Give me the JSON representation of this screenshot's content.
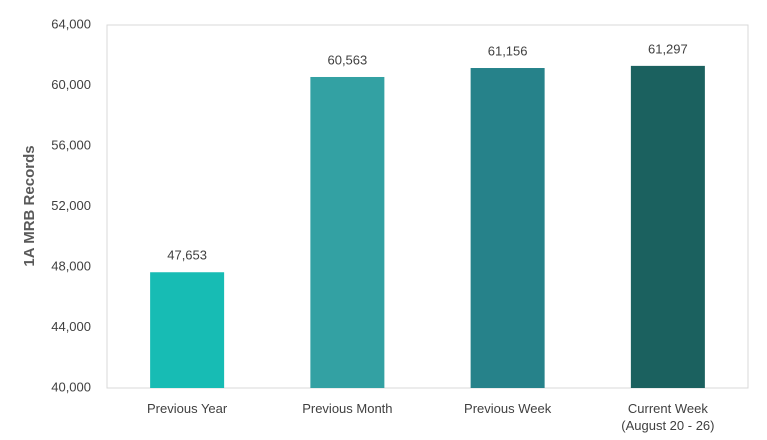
{
  "chart_data": {
    "type": "bar",
    "y_label": "1A MRB Records",
    "categories": [
      "Previous Year",
      "Previous Month",
      "Previous Week",
      "Current Week\n(August 20 - 26)"
    ],
    "values": [
      47653,
      60563,
      61156,
      61297
    ],
    "value_labels": [
      "47,653",
      "60,563",
      "61,156",
      "61,297"
    ],
    "colors": [
      "#17bcb4",
      "#33a1a3",
      "#26828a",
      "#1b615f"
    ],
    "ylim": [
      40000,
      64000
    ],
    "yticks": [
      {
        "value": 40000,
        "label": "40,000"
      },
      {
        "value": 44000,
        "label": "44,000"
      },
      {
        "value": 48000,
        "label": "48,000"
      },
      {
        "value": 52000,
        "label": "52,000"
      },
      {
        "value": 56000,
        "label": "56,000"
      },
      {
        "value": 60000,
        "label": "60,000"
      },
      {
        "value": 64000,
        "label": "64,000"
      }
    ],
    "grid": false
  }
}
